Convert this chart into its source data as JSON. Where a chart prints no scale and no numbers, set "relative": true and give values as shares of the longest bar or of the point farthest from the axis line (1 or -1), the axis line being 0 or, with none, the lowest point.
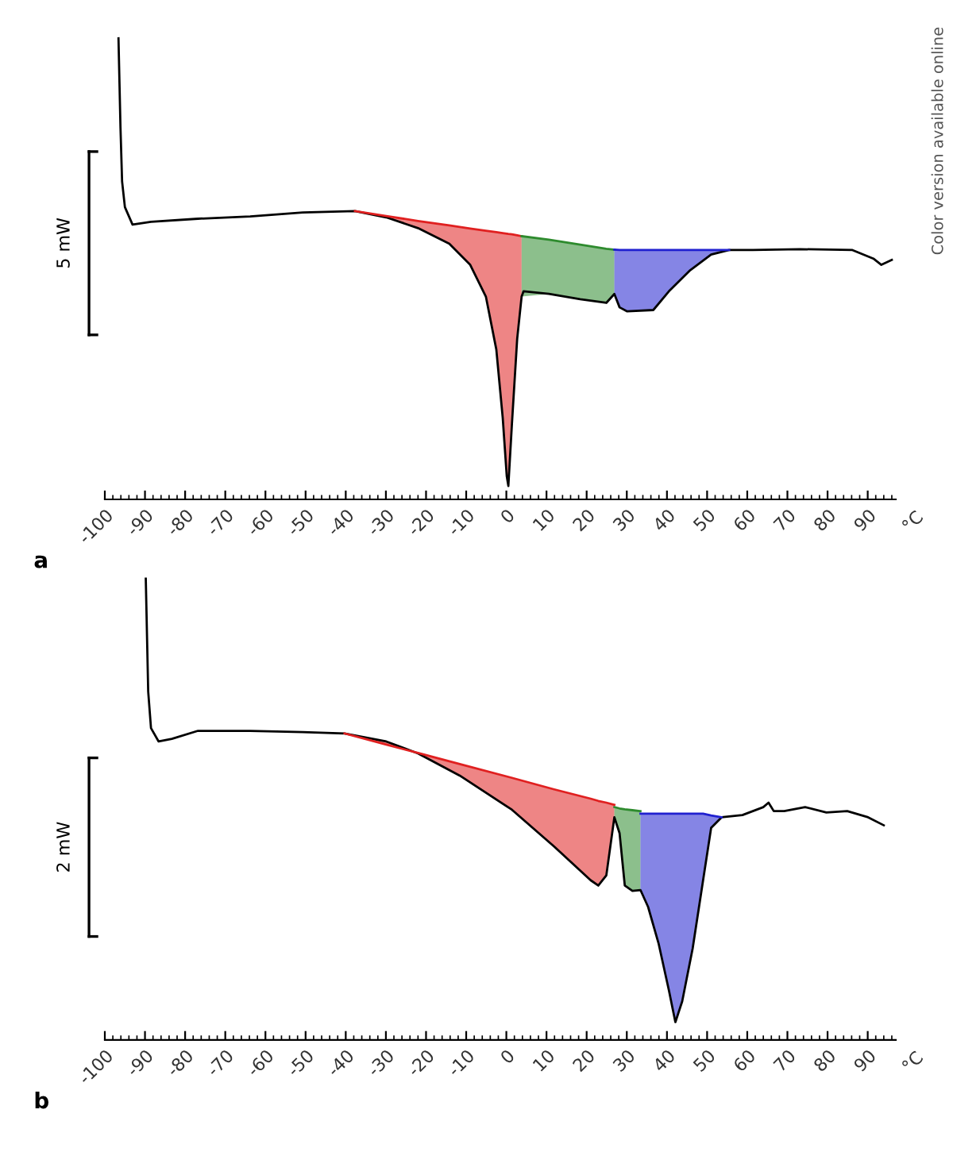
{
  "chart_data": [
    {
      "type": "line",
      "title": "a",
      "relative": true,
      "xlim": [
        -100,
        97
      ],
      "xticks": [
        -100,
        -90,
        -80,
        -70,
        -60,
        -50,
        -40,
        -30,
        -20,
        -10,
        0,
        10,
        20,
        30,
        40,
        50,
        60,
        70,
        80,
        90
      ],
      "xlabel": "°C",
      "tick_labels": "x",
      "annotations": [
        "5 mW",
        "Color version available online"
      ],
      "series": [
        {
          "color": "#000000",
          "x": [
            -96.6,
            -96.1,
            -95.7,
            -95.0,
            -93.1,
            -88.5,
            -76.8,
            -63.8,
            -50.7,
            -37.7,
            -29.9,
            -22.0,
            -14.2,
            -9.0,
            -5.1,
            -2.5,
            -0.9,
            0.1,
            0.5,
            1.4,
            2.7,
            3.8,
            4.3,
            10.6,
            18.4,
            24.9,
            26.9,
            28.2,
            30.1,
            36.6,
            40.5,
            45.8,
            51.0,
            55.5,
            61.4,
            73.1,
            86.2,
            91.4,
            93.4,
            96.0
          ],
          "values": [
            1.0,
            0.8,
            0.68,
            0.623,
            0.584,
            0.59,
            0.597,
            0.602,
            0.611,
            0.614,
            0.6,
            0.576,
            0.541,
            0.494,
            0.423,
            0.305,
            0.152,
            0.022,
            0.0,
            0.14,
            0.329,
            0.423,
            0.435,
            0.429,
            0.417,
            0.409,
            0.429,
            0.399,
            0.39,
            0.393,
            0.435,
            0.482,
            0.517,
            0.527,
            0.527,
            0.529,
            0.527,
            0.508,
            0.494,
            0.505
          ]
        },
        {
          "color": "#e02020",
          "x": [
            -37.7,
            -29.9,
            -22.0,
            -14.2,
            -9.0,
            -5.1,
            -2.5,
            -0.9,
            0.5,
            1.4,
            2.7,
            3.8
          ],
          "values": [
            0.614,
            0.603,
            0.592,
            0.582,
            0.575,
            0.57,
            0.567,
            0.565,
            0.563,
            0.562,
            0.56,
            0.558
          ],
          "lower": [
            0.614,
            0.6,
            0.576,
            0.541,
            0.494,
            0.423,
            0.305,
            0.152,
            0.0,
            0.14,
            0.329,
            0.423
          ],
          "upper": [
            0.614,
            0.603,
            0.592,
            0.582,
            0.575,
            0.57,
            0.567,
            0.565,
            0.563,
            0.562,
            0.56,
            0.558
          ]
        },
        {
          "color": "#2e8b2e",
          "x": [
            3.8,
            10.6,
            18.4,
            24.9,
            26.9
          ],
          "values": [
            0.558,
            0.55,
            0.539,
            0.53,
            0.528
          ],
          "lower": [
            0.423,
            0.429,
            0.417,
            0.409,
            0.429
          ],
          "upper": [
            0.558,
            0.55,
            0.539,
            0.53,
            0.528
          ]
        },
        {
          "color": "#2020d0",
          "x": [
            26.9,
            28.2,
            30.1,
            36.6,
            40.5,
            45.8,
            51.0,
            55.5
          ],
          "values": [
            0.528,
            0.527,
            0.527,
            0.527,
            0.527,
            0.527,
            0.527,
            0.527
          ],
          "lower": [
            0.429,
            0.399,
            0.39,
            0.393,
            0.435,
            0.482,
            0.517,
            0.527
          ],
          "upper": [
            0.528,
            0.527,
            0.527,
            0.527,
            0.527,
            0.527,
            0.527,
            0.527
          ]
        }
      ]
    },
    {
      "type": "line",
      "title": "b",
      "relative": true,
      "xlim": [
        -100,
        97
      ],
      "xticks": [
        -100,
        -90,
        -80,
        -70,
        -60,
        -50,
        -40,
        -30,
        -20,
        -10,
        0,
        10,
        20,
        30,
        40,
        50,
        60,
        70,
        80,
        90
      ],
      "xlabel": "°C",
      "tick_labels": "x",
      "annotations": [
        "2 mW"
      ],
      "series": [
        {
          "color": "#000000",
          "x": [
            -89.8,
            -89.2,
            -88.5,
            -86.6,
            -83.3,
            -76.8,
            -63.8,
            -50.7,
            -40.3,
            -29.9,
            -22.0,
            -11.6,
            1.4,
            11.9,
            21.0,
            22.9,
            24.9,
            26.9,
            28.2,
            29.5,
            31.4,
            33.4,
            35.3,
            37.9,
            40.5,
            42.1,
            43.8,
            46.4,
            49.0,
            51.0,
            53.6,
            58.8,
            64.0,
            65.3,
            66.6,
            69.2,
            74.4,
            79.7,
            84.9,
            90.1,
            94.0
          ],
          "values": [
            1.0,
            0.746,
            0.663,
            0.633,
            0.639,
            0.657,
            0.657,
            0.654,
            0.651,
            0.633,
            0.606,
            0.556,
            0.479,
            0.396,
            0.32,
            0.308,
            0.331,
            0.462,
            0.426,
            0.308,
            0.296,
            0.298,
            0.26,
            0.178,
            0.071,
            0.0,
            0.047,
            0.166,
            0.32,
            0.438,
            0.462,
            0.467,
            0.485,
            0.495,
            0.476,
            0.476,
            0.485,
            0.473,
            0.476,
            0.462,
            0.444
          ]
        },
        {
          "color": "#e02020",
          "x": [
            -40.3,
            -29.9,
            -22.0,
            -11.6,
            1.4,
            11.9,
            21.0,
            22.9,
            24.9,
            26.9
          ],
          "values": [
            0.651,
            0.626,
            0.607,
            0.582,
            0.551,
            0.525,
            0.504,
            0.499,
            0.495,
            0.49
          ],
          "lower": [
            0.651,
            0.633,
            0.606,
            0.556,
            0.479,
            0.396,
            0.32,
            0.308,
            0.331,
            0.462
          ],
          "upper": [
            0.651,
            0.626,
            0.607,
            0.582,
            0.551,
            0.525,
            0.504,
            0.499,
            0.495,
            0.49
          ]
        },
        {
          "color": "#2e8b2e",
          "x": [
            26.9,
            28.2,
            29.5,
            31.4,
            33.4
          ],
          "values": [
            0.485,
            0.482,
            0.48,
            0.478,
            0.476
          ],
          "lower": [
            0.462,
            0.426,
            0.308,
            0.296,
            0.298
          ],
          "upper": [
            0.485,
            0.482,
            0.48,
            0.478,
            0.476
          ]
        },
        {
          "color": "#2020d0",
          "x": [
            33.4,
            35.3,
            37.9,
            40.5,
            42.1,
            43.8,
            46.4,
            49.0,
            51.0,
            53.6
          ],
          "values": [
            0.47,
            0.47,
            0.47,
            0.47,
            0.47,
            0.47,
            0.47,
            0.47,
            0.466,
            0.462
          ],
          "lower": [
            0.298,
            0.26,
            0.178,
            0.071,
            0.0,
            0.047,
            0.166,
            0.32,
            0.438,
            0.462
          ],
          "upper": [
            0.47,
            0.47,
            0.47,
            0.47,
            0.47,
            0.47,
            0.47,
            0.47,
            0.466,
            0.462
          ]
        }
      ]
    }
  ]
}
